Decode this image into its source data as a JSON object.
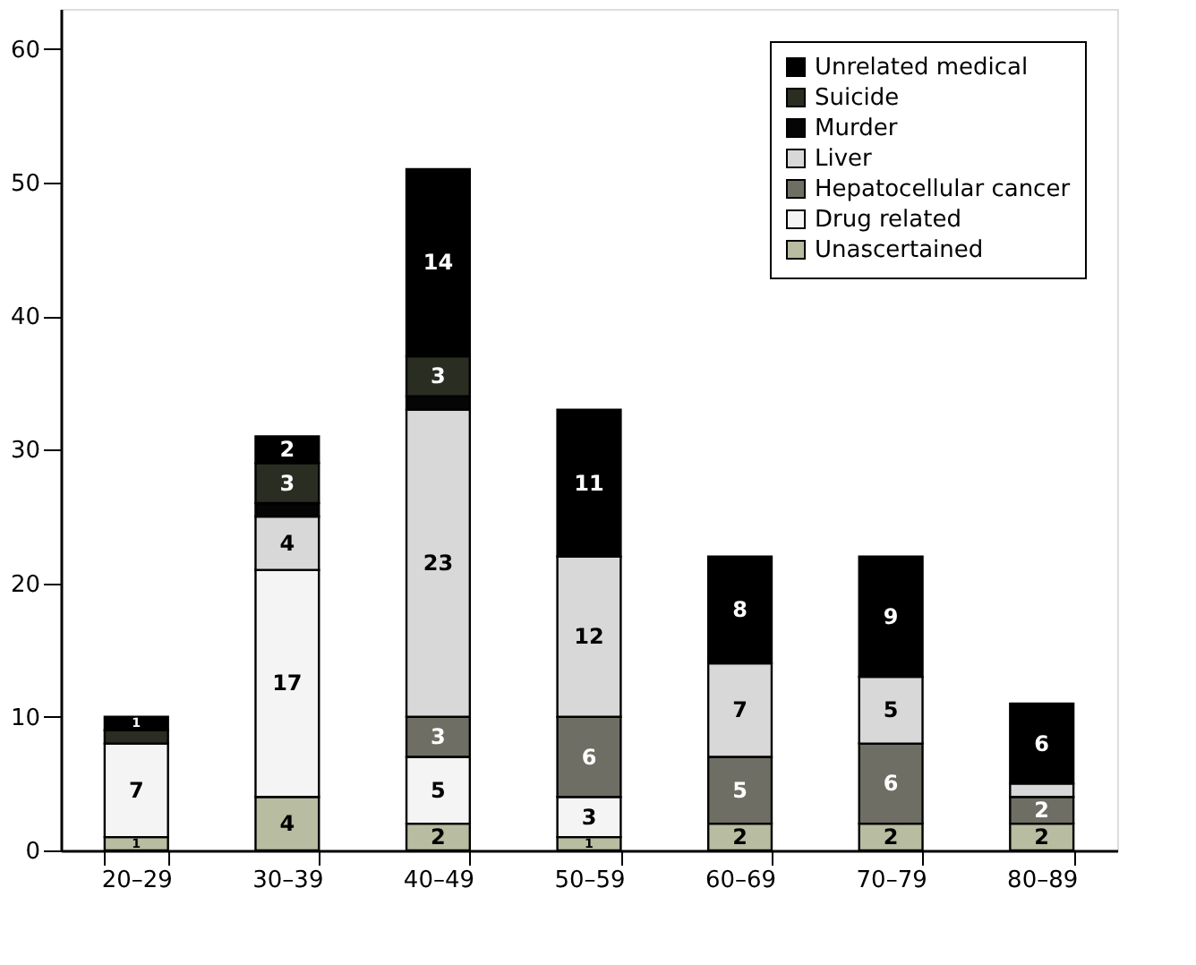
{
  "chart_data": {
    "type": "bar",
    "stacked": true,
    "categories": [
      "20–29",
      "30–39",
      "40–49",
      "50–59",
      "60–69",
      "70–79",
      "80–89"
    ],
    "series": [
      {
        "name": "Unascertained",
        "color": "#b8bca0",
        "values": [
          1,
          4,
          2,
          1,
          2,
          2,
          2
        ],
        "value_labels": [
          "1",
          "4",
          "2",
          "1",
          "2",
          "2",
          "2"
        ]
      },
      {
        "name": "Drug related",
        "color": "#f4f4f4",
        "values": [
          7,
          17,
          5,
          3,
          0,
          0,
          0
        ],
        "value_labels": [
          "7",
          "17",
          "5",
          "3",
          null,
          null,
          null
        ]
      },
      {
        "name": "Hepatocellular cancer",
        "color": "#6e6e64",
        "values": [
          0,
          0,
          3,
          6,
          5,
          6,
          2
        ],
        "value_labels": [
          null,
          null,
          "3",
          "6",
          "5",
          "6",
          "2"
        ]
      },
      {
        "name": "Liver",
        "color": "#d8d8d8",
        "values": [
          0,
          4,
          23,
          12,
          7,
          5,
          1
        ],
        "value_labels": [
          null,
          "4",
          "23",
          "12",
          "7",
          "5",
          null
        ]
      },
      {
        "name": "Murder",
        "color": "#050505",
        "values": [
          0,
          1,
          1,
          0,
          0,
          0,
          0
        ],
        "value_labels": [
          null,
          null,
          null,
          null,
          null,
          null,
          null
        ]
      },
      {
        "name": "Suicide",
        "color": "#2a2d22",
        "values": [
          1,
          3,
          3,
          0,
          0,
          0,
          0
        ],
        "value_labels": [
          null,
          "3",
          "3",
          null,
          null,
          null,
          null
        ]
      },
      {
        "name": "Unrelated medical",
        "color": "#000000",
        "values": [
          1,
          2,
          14,
          11,
          8,
          9,
          6
        ],
        "value_labels": [
          "1",
          "2",
          "14",
          "11",
          "8",
          "9",
          "6"
        ]
      }
    ],
    "ylim": [
      0,
      63
    ],
    "yticks": [
      0,
      10,
      20,
      30,
      40,
      50,
      60
    ],
    "grid": false,
    "legend": "top right"
  }
}
